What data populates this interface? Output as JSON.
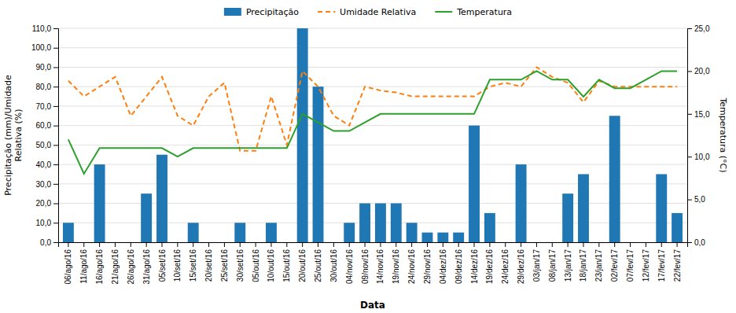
{
  "chart_data": {
    "type": "bar",
    "xlabel": "Data",
    "ylabel": "Precipitação (mm)/Umidade\nRelativa (%)",
    "y2label": "Temperatura (°C)",
    "categories": [
      "06/ago/16",
      "11/ago/16",
      "16/ago/16",
      "21/ago/16",
      "26/ago/16",
      "31/ago/16",
      "05/set/16",
      "10/set/16",
      "15/set/16",
      "20/set/16",
      "25/set/16",
      "30/set/16",
      "05/out/16",
      "10/out/16",
      "15/out/16",
      "20/out/16",
      "25/out/16",
      "30/out/16",
      "04/nov/16",
      "09/nov/16",
      "14/nov/16",
      "19/nov/16",
      "24/nov/16",
      "29/nov/16",
      "04/dez/16",
      "09/dez/16",
      "14/dez/16",
      "19/dez/16",
      "24/dez/16",
      "29/dez/16",
      "03/jan/17",
      "08/jan/17",
      "13/jan/17",
      "18/jan/17",
      "23/jan/17",
      "02/fev/17",
      "07/fev/17",
      "12/fev/17",
      "17/fev/17",
      "22/fev/17"
    ],
    "series": [
      {
        "name": "Precipitação",
        "type": "bar",
        "values": [
          10,
          0,
          40,
          0,
          0,
          25,
          45,
          0,
          10,
          0,
          0,
          10,
          0,
          10,
          0,
          110,
          80,
          0,
          10,
          20,
          20,
          20,
          10,
          5,
          5,
          5,
          60,
          15,
          0,
          40,
          0,
          0,
          25,
          35,
          0,
          65,
          0,
          0,
          35,
          15
        ]
      },
      {
        "name": "Umidade Relativa",
        "type": "line",
        "line_style": "dashed",
        "values": [
          83,
          75,
          80,
          85,
          65,
          75,
          85,
          65,
          60,
          75,
          82,
          47,
          47,
          75,
          50,
          88,
          80,
          65,
          60,
          80,
          78,
          77,
          75,
          75,
          75,
          75,
          75,
          80,
          82,
          80,
          90,
          85,
          82,
          72,
          83,
          80,
          80,
          80,
          80,
          80
        ]
      },
      {
        "name": "Temperatura",
        "type": "line",
        "line_style": "solid",
        "axis": "y2",
        "values": [
          12,
          8,
          11,
          11,
          11,
          11,
          11,
          10,
          11,
          11,
          11,
          11,
          11,
          11,
          11,
          15,
          14,
          13,
          13,
          14,
          15,
          15,
          15,
          15,
          15,
          15,
          15,
          19,
          19,
          19,
          20,
          19,
          19,
          17,
          19,
          18,
          18,
          19,
          20,
          20
        ]
      }
    ],
    "ylim": [
      0,
      110
    ],
    "yticks": [
      {
        "value": 0,
        "label": "0,0"
      },
      {
        "value": 10,
        "label": "10,0"
      },
      {
        "value": 20,
        "label": "20,0"
      },
      {
        "value": 30,
        "label": "30,0"
      },
      {
        "value": 40,
        "label": "40,0"
      },
      {
        "value": 50,
        "label": "50,0"
      },
      {
        "value": 60,
        "label": "60,0"
      },
      {
        "value": 70,
        "label": "70,0"
      },
      {
        "value": 80,
        "label": "80,0"
      },
      {
        "value": 90,
        "label": "90,0"
      },
      {
        "value": 100,
        "label": "100,0"
      },
      {
        "value": 110,
        "label": "110,0"
      }
    ],
    "y2lim": [
      0,
      25
    ],
    "y2ticks": [
      {
        "value": 0,
        "label": "0,0"
      },
      {
        "value": 5,
        "label": "5,0"
      },
      {
        "value": 10,
        "label": "10,0"
      },
      {
        "value": 15,
        "label": "15,0"
      },
      {
        "value": 20,
        "label": "20,0"
      },
      {
        "value": 25,
        "label": "25,0"
      }
    ],
    "grid": true,
    "legend": "top"
  }
}
